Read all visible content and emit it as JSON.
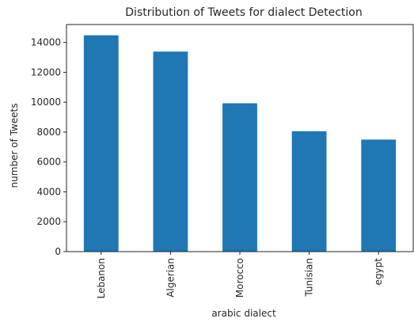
{
  "chart_data": {
    "type": "bar",
    "title": "Distribution of Tweets for dialect Detection",
    "xlabel": "arabic dialect",
    "ylabel": "number of Tweets",
    "categories": [
      "Lebanon",
      "Algerian",
      "Morocco",
      "Tunisian",
      "egypt"
    ],
    "values": [
      14480,
      13390,
      9930,
      8060,
      7500
    ],
    "ylim": [
      0,
      15200
    ],
    "yticks": [
      "0",
      "2000",
      "4000",
      "6000",
      "8000",
      "10000",
      "12000",
      "14000"
    ],
    "bar_color": "#1f77b4",
    "grid": false
  }
}
